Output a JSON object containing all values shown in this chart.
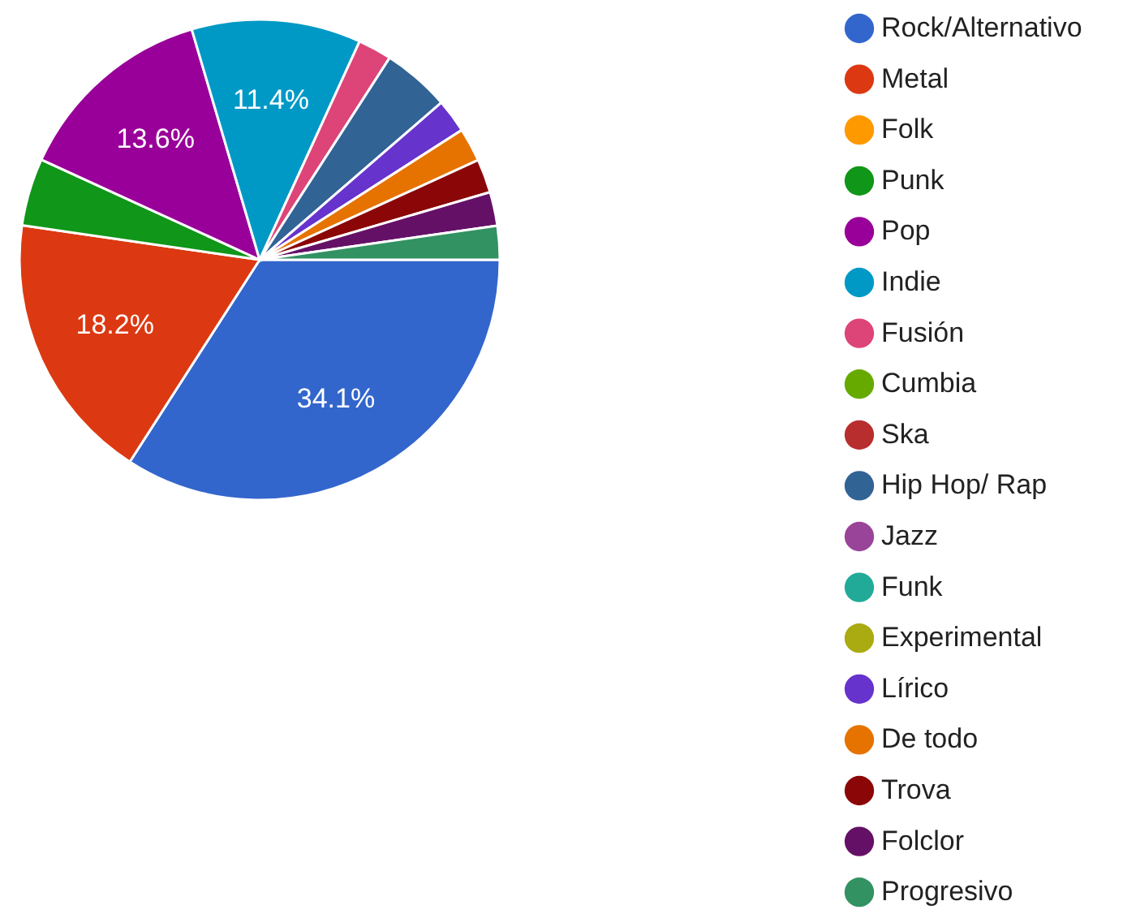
{
  "chart_data": {
    "type": "pie",
    "categories": [
      "Rock/Alternativo",
      "Metal",
      "Folk",
      "Punk",
      "Pop",
      "Indie",
      "Fusión",
      "Cumbia",
      "Ska",
      "Hip Hop/ Rap",
      "Jazz",
      "Funk",
      "Experimental",
      "Lírico",
      "De todo",
      "Trova",
      "Folclor",
      "Progresivo"
    ],
    "values": [
      34.1,
      18.2,
      0,
      4.55,
      13.6,
      11.4,
      2.27,
      0,
      0,
      4.55,
      0,
      0,
      0,
      2.27,
      2.27,
      2.27,
      2.27,
      2.27
    ],
    "value_labels": [
      "34.1%",
      "18.2%",
      null,
      null,
      "13.6%",
      "11.4%",
      null,
      null,
      null,
      null,
      null,
      null,
      null,
      null,
      null,
      null,
      null,
      null
    ],
    "colors": [
      "#3366cc",
      "#dc3912",
      "#ff9900",
      "#109618",
      "#990099",
      "#0099c6",
      "#dd4477",
      "#66aa00",
      "#b82e2e",
      "#316395",
      "#994499",
      "#22aa99",
      "#aaaa11",
      "#6633cc",
      "#e67300",
      "#8b0707",
      "#651067",
      "#329262"
    ],
    "legend": "right"
  }
}
